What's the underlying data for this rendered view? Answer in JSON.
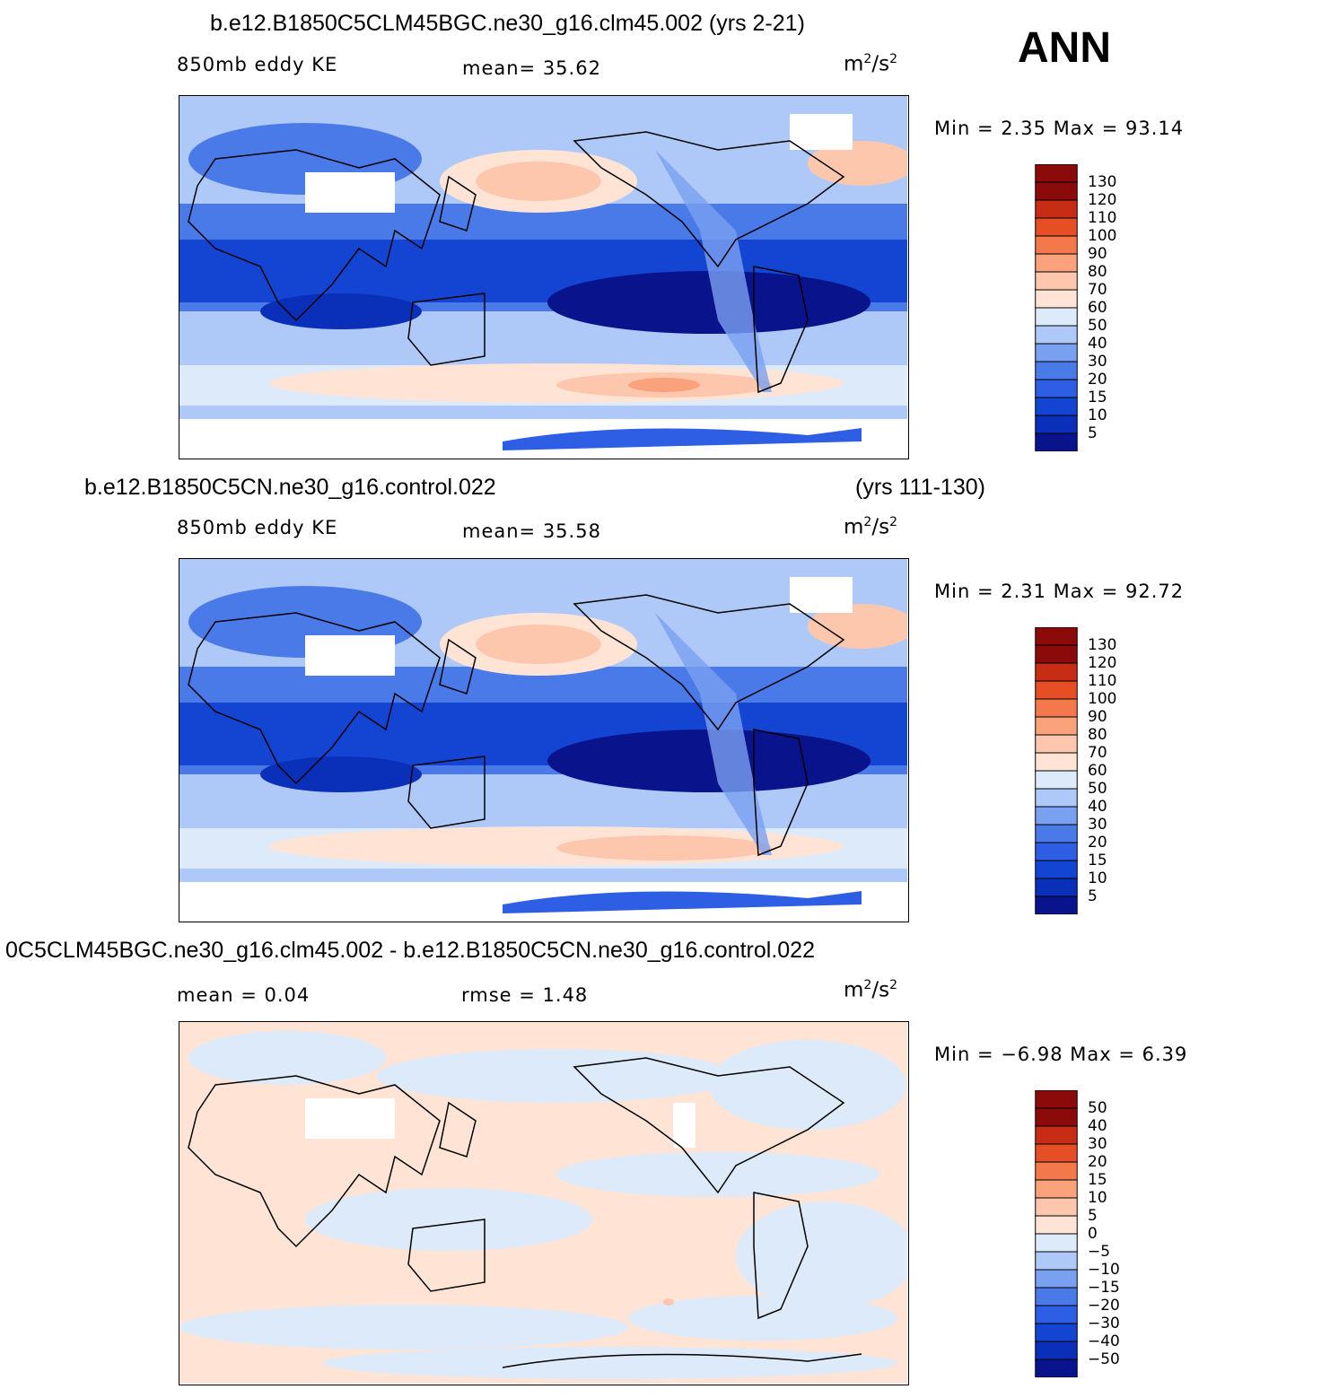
{
  "season": "ANN",
  "colors": {
    "main_scale": [
      "#08138c",
      "#0a2fb8",
      "#1445d2",
      "#2e5ee4",
      "#4a7ae8",
      "#7aa0f0",
      "#aec8f8",
      "#dceafa",
      "#ffe4d6",
      "#fdc7ae",
      "#f9a27c",
      "#f3784c",
      "#e64f25",
      "#c72c14",
      "#8b0a0a"
    ],
    "diff_scale": [
      "#08138c",
      "#0a2fb8",
      "#1445d2",
      "#2e5ee4",
      "#4a7ae8",
      "#7aa0f0",
      "#aec8f8",
      "#dceafa",
      "#ffe4d6",
      "#fdc7ae",
      "#f9a27c",
      "#f3784c",
      "#e64f25",
      "#c72c14",
      "#8b0a0a"
    ]
  },
  "panels": [
    {
      "title_left": "b.e12.B1850C5CLM45BGC.ne30_g16.clm45.002 (yrs 2-21)",
      "title_right": "",
      "label_left": "850mb eddy KE",
      "label_center": "mean=   35.62",
      "units": "m",
      "units_sup": "2",
      "units_tail": "/s",
      "units_sup2": "2",
      "minmax": "Min =    2.35 Max =   93.14",
      "colorbar_labels": [
        "130",
        "120",
        "110",
        "100",
        "90",
        "80",
        "70",
        "60",
        "50",
        "40",
        "30",
        "20",
        "15",
        "10",
        "5"
      ]
    },
    {
      "title_left": "b.e12.B1850C5CN.ne30_g16.control.022",
      "title_right": "(yrs 111-130)",
      "label_left": "850mb eddy KE",
      "label_center": "mean=   35.58",
      "units": "m",
      "units_sup": "2",
      "units_tail": "/s",
      "units_sup2": "2",
      "minmax": "Min =    2.31 Max =   92.72",
      "colorbar_labels": [
        "130",
        "120",
        "110",
        "100",
        "90",
        "80",
        "70",
        "60",
        "50",
        "40",
        "30",
        "20",
        "15",
        "10",
        "5"
      ]
    },
    {
      "title_left": "0C5CLM45BGC.ne30_g16.clm45.002 - b.e12.B1850C5CN.ne30_g16.control.022",
      "title_right": "",
      "label_left": "mean =    0.04",
      "label_center": "rmse =    1.48",
      "units": "m",
      "units_sup": "2",
      "units_tail": "/s",
      "units_sup2": "2",
      "minmax": "Min =  −6.98 Max =    6.39",
      "colorbar_labels": [
        "50",
        "40",
        "30",
        "20",
        "15",
        "10",
        "5",
        "0",
        "−5",
        "−10",
        "−15",
        "−20",
        "−30",
        "−40",
        "−50"
      ]
    }
  ]
}
